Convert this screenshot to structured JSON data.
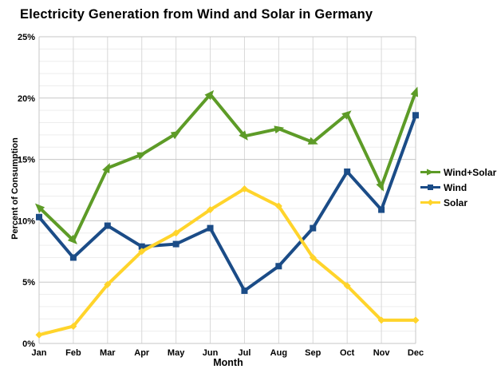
{
  "title": "Electricity Generation from Wind and Solar in Germany",
  "chart_data": {
    "type": "line",
    "title": "Electricity Generation from Wind and Solar in Germany",
    "xlabel": "Month",
    "ylabel": "Percent of Consumption",
    "categories": [
      "Jan",
      "Feb",
      "Mar",
      "Apr",
      "May",
      "Jun",
      "Jul",
      "Aug",
      "Sep",
      "Oct",
      "Nov",
      "Dec"
    ],
    "ylim": [
      0,
      25
    ],
    "ytick_step": 5,
    "yminor_step": 1,
    "yticklabels": [
      "0%",
      "5%",
      "10%",
      "15%",
      "20%",
      "25%"
    ],
    "grid": true,
    "legend_position": "right",
    "series": [
      {
        "name": "Wind+Solar",
        "color": "#5d9b27",
        "marker": "arrow",
        "values": [
          11.1,
          8.4,
          14.3,
          15.4,
          17.1,
          20.3,
          16.9,
          17.5,
          16.4,
          18.7,
          12.8,
          20.5
        ]
      },
      {
        "name": "Wind",
        "color": "#1b4c87",
        "marker": "square",
        "values": [
          10.3,
          7.0,
          9.6,
          7.9,
          8.1,
          9.4,
          4.3,
          6.3,
          9.4,
          14.0,
          10.9,
          18.6
        ]
      },
      {
        "name": "Solar",
        "color": "#ffd42b",
        "marker": "diamond",
        "values": [
          0.7,
          1.4,
          4.8,
          7.5,
          9.0,
          10.9,
          12.6,
          11.2,
          7.0,
          4.7,
          1.9,
          1.9
        ]
      }
    ],
    "grid_colors": {
      "minor": "#ededed",
      "major": "#c7c7c7",
      "vertical": "#d8d8d8"
    }
  }
}
